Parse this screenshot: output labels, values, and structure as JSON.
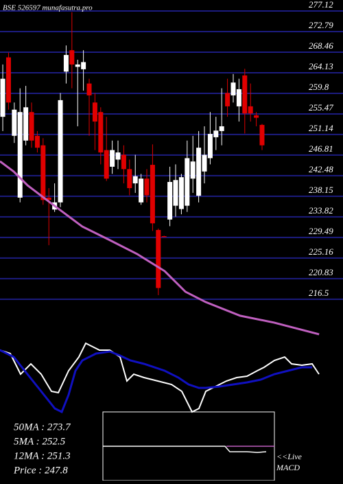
{
  "chart_data": {
    "type": "candlestick",
    "title": "BSE 526597 munafasutra.pro",
    "xlim": [
      -0.48,
      59.05
    ],
    "ylim": [
      207.1,
      278.56
    ],
    "yticks": [
      277.12,
      272.79,
      268.46,
      264.13,
      259.8,
      255.47,
      251.14,
      246.81,
      242.48,
      238.15,
      233.82,
      229.49,
      225.16,
      220.83,
      216.5
    ],
    "grid": true,
    "grid_color": "#1c1c80",
    "up_color": "#ffffff",
    "down_color": "#e00000",
    "open": [
      254.0,
      266.5,
      250.0,
      237.0,
      249.0,
      255.0,
      250.0,
      248.0,
      237.0,
      234.5,
      236.0,
      263.5,
      268.0,
      264.5,
      264.0,
      261.0,
      257.0,
      255.0,
      247.0,
      243.5,
      245.0,
      246.0,
      243.0,
      240.0,
      236.0,
      241.0,
      243.9,
      230.2,
      228.9,
      232.4,
      235.3,
      234.6,
      235.3,
      241.0,
      237.4,
      242.5,
      245.3,
      249.7,
      251.0,
      259.0,
      258.5,
      256.2,
      262.7,
      256.2,
      254.3,
      252.3
    ],
    "high": [
      265.0,
      267.5,
      257.0,
      260.0,
      260.5,
      257.0,
      251.0,
      249.5,
      239.0,
      240.0,
      259.0,
      269.0,
      276.0,
      266.0,
      268.0,
      262.0,
      259.0,
      256.0,
      254.0,
      249.0,
      249.0,
      248.0,
      245.0,
      246.0,
      242.0,
      243.0,
      248.2,
      230.5,
      229.0,
      243.5,
      244.0,
      242.0,
      249.0,
      250.0,
      251.0,
      252.0,
      255.0,
      254.0,
      260.0,
      262.0,
      263.0,
      262.0,
      264.1,
      261.0,
      255.0,
      252.5
    ],
    "low": [
      251.0,
      255.5,
      248.5,
      236.0,
      248.0,
      247.5,
      246.5,
      235.5,
      227.0,
      234.0,
      235.0,
      261.0,
      260.0,
      252.0,
      259.5,
      250.0,
      247.0,
      244.0,
      240.5,
      242.0,
      243.0,
      240.0,
      237.5,
      238.0,
      235.5,
      236.0,
      230.0,
      216.5,
      228.7,
      231.0,
      233.0,
      233.5,
      234.0,
      238.0,
      236.0,
      240.0,
      244.0,
      247.0,
      248.0,
      254.0,
      257.0,
      253.0,
      250.5,
      253.0,
      252.0,
      247.0
    ],
    "close": [
      262.0,
      257.0,
      255.5,
      255.0,
      256.0,
      249.0,
      247.5,
      236.5,
      236.5,
      236.0,
      257.5,
      267.0,
      265.0,
      265.0,
      265.5,
      258.5,
      253.0,
      246.5,
      241.0,
      247.0,
      246.5,
      243.0,
      239.0,
      241.5,
      241.0,
      237.5,
      231.6,
      218.0,
      228.8,
      240.3,
      240.7,
      241.3,
      245.3,
      244.6,
      247.5,
      246.0,
      250.4,
      251.1,
      252.0,
      256.2,
      261.2,
      259.8,
      254.7,
      254.7,
      253.8,
      248.0
    ],
    "ma": {
      "color": "#c060c0",
      "x": [
        -0.48,
        1.9,
        4.3,
        9.0,
        13.8,
        18.6,
        23.3,
        28.1,
        31.7,
        35.2,
        41.2,
        47.1,
        54.9
      ],
      "values": [
        244.64,
        242.48,
        239.59,
        235.26,
        230.93,
        228.05,
        225.16,
        221.55,
        217.22,
        215.05,
        212.17,
        210.72,
        208.27
      ]
    },
    "indicator": {
      "xlim": [
        0,
        500
      ],
      "ylim": [
        -50,
        50
      ],
      "series": [
        {
          "color": "#ffffff",
          "x": [
            0,
            15,
            30,
            45,
            60,
            75,
            85,
            100,
            115,
            125,
            135,
            145,
            160,
            175,
            185,
            195,
            210,
            230,
            250,
            265,
            280,
            290,
            300,
            310,
            320,
            330,
            345,
            360,
            375,
            385,
            400,
            415,
            425,
            440,
            455,
            465
          ],
          "values": [
            40,
            35,
            5,
            20,
            5,
            -20,
            -22,
            10,
            30,
            50,
            45,
            40,
            40,
            30,
            -5,
            5,
            0,
            -5,
            -10,
            -20,
            -50,
            -45,
            -20,
            -15,
            -10,
            -5,
            0,
            2,
            10,
            15,
            25,
            30,
            20,
            18,
            20,
            5
          ]
        },
        {
          "color": "#1010c0",
          "x": [
            0,
            20,
            40,
            60,
            80,
            90,
            100,
            110,
            120,
            140,
            160,
            175,
            190,
            210,
            240,
            260,
            275,
            290,
            300,
            320,
            340,
            360,
            380,
            400,
            420,
            440,
            455
          ],
          "values": [
            40,
            30,
            5,
            -20,
            -45,
            -50,
            -25,
            10,
            25,
            35,
            38,
            32,
            25,
            20,
            10,
            0,
            -10,
            -15,
            -15,
            -13,
            -10,
            -7,
            -3,
            5,
            10,
            15,
            15
          ]
        }
      ]
    },
    "macd": {
      "xlim": [
        150,
        400
      ],
      "ylim": [
        -50,
        50
      ],
      "series": [
        {
          "color": "#ffffff",
          "x": [
            150,
            250,
            328,
            335,
            360,
            375,
            388
          ],
          "values": [
            0,
            0,
            0,
            -8,
            -8,
            -9,
            -8
          ]
        },
        {
          "color": "#c060c0",
          "x": [
            330,
            400
          ],
          "values": [
            0,
            0
          ]
        }
      ]
    },
    "stats": [
      "50MA : 273.7",
      "5MA : 252.5",
      "12MA : 251.3",
      "Price   : 247.8"
    ],
    "macd_label": [
      "<<Live",
      "MACD"
    ]
  }
}
